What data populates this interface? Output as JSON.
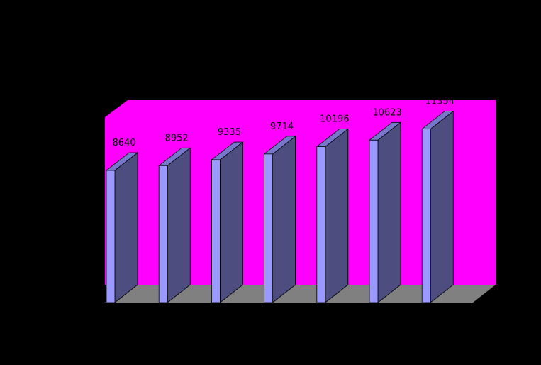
{
  "chart_data": {
    "type": "bar",
    "style": "3d",
    "categories": [
      "",
      "",
      "",
      "",
      "",
      "",
      ""
    ],
    "values": [
      8640,
      8952,
      9335,
      9714,
      10196,
      10623,
      11354
    ],
    "data_labels": [
      "8640",
      "8952",
      "9335",
      "9714",
      "10196",
      "10623",
      "11354"
    ],
    "title": "",
    "xlabel": "",
    "ylabel": "",
    "ylim": [
      0,
      14000
    ],
    "grid": false,
    "legend": "none"
  },
  "colors": {
    "background": "#000000",
    "back_wall": "#ff00ff",
    "floor": "#808080",
    "bar_front": "#9999ff",
    "bar_side": "#4d4d80",
    "bar_top": "#7777cc",
    "label": "#000000"
  }
}
